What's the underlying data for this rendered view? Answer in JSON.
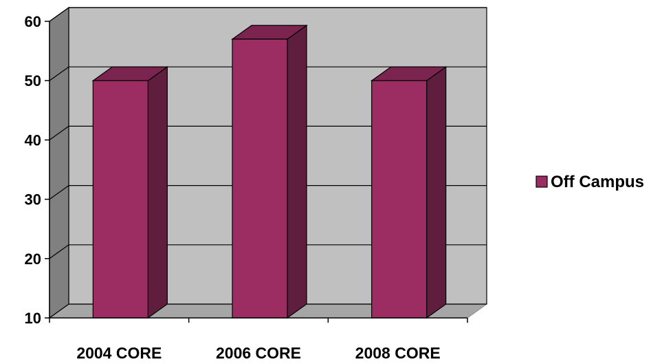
{
  "chart_data": {
    "type": "bar",
    "three_d": true,
    "categories": [
      "2004 CORE",
      "2006 CORE",
      "2008 CORE"
    ],
    "series": [
      {
        "name": "Off Campus",
        "values": [
          50,
          57,
          50
        ]
      }
    ],
    "y_ticks": [
      "10",
      "20",
      "30",
      "40",
      "50",
      "60"
    ],
    "ylim": [
      10,
      60
    ],
    "grid": true,
    "legend_position": "right",
    "colors": {
      "bar_front": "#9B2D62",
      "bar_side": "#5F1E3D",
      "bar_top": "#7C2450",
      "back_wall": "#C0C0C0",
      "side_wall": "#808080",
      "floor": "#A6A6A6",
      "gridline": "#000000"
    }
  }
}
